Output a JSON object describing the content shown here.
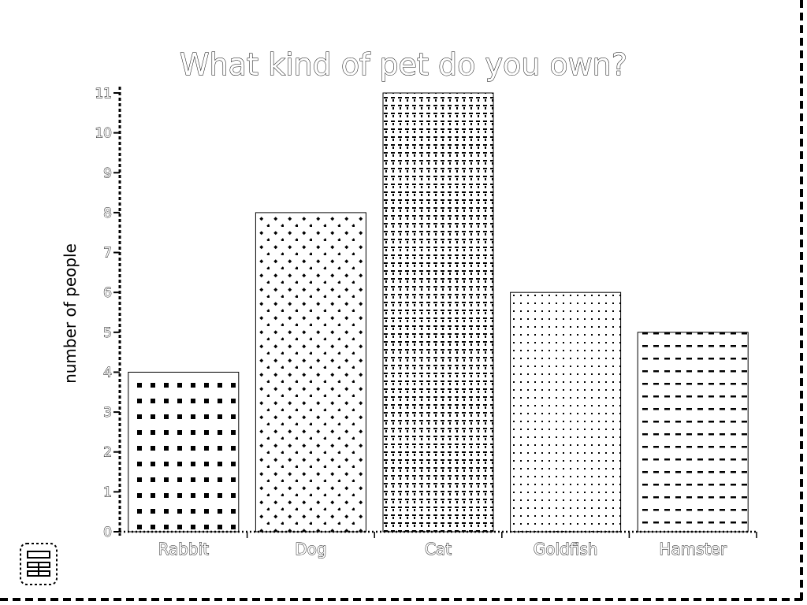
{
  "chart_data": {
    "type": "bar",
    "title": "What kind of pet do you own?",
    "xlabel": "",
    "ylabel": "number of people",
    "categories": [
      "Rabbit",
      "Dog",
      "Cat",
      "Goldfish",
      "Hamster"
    ],
    "values": [
      4,
      8,
      11,
      6,
      5
    ],
    "ylim": [
      0,
      11
    ],
    "yticks": [
      0,
      1,
      2,
      3,
      4,
      5,
      6,
      7,
      8,
      9,
      10,
      11
    ],
    "grid": false,
    "legend": "none"
  },
  "icons": {
    "corner": "calculator-icon"
  },
  "colors": {
    "ink": "#000000",
    "background": "#ffffff"
  }
}
